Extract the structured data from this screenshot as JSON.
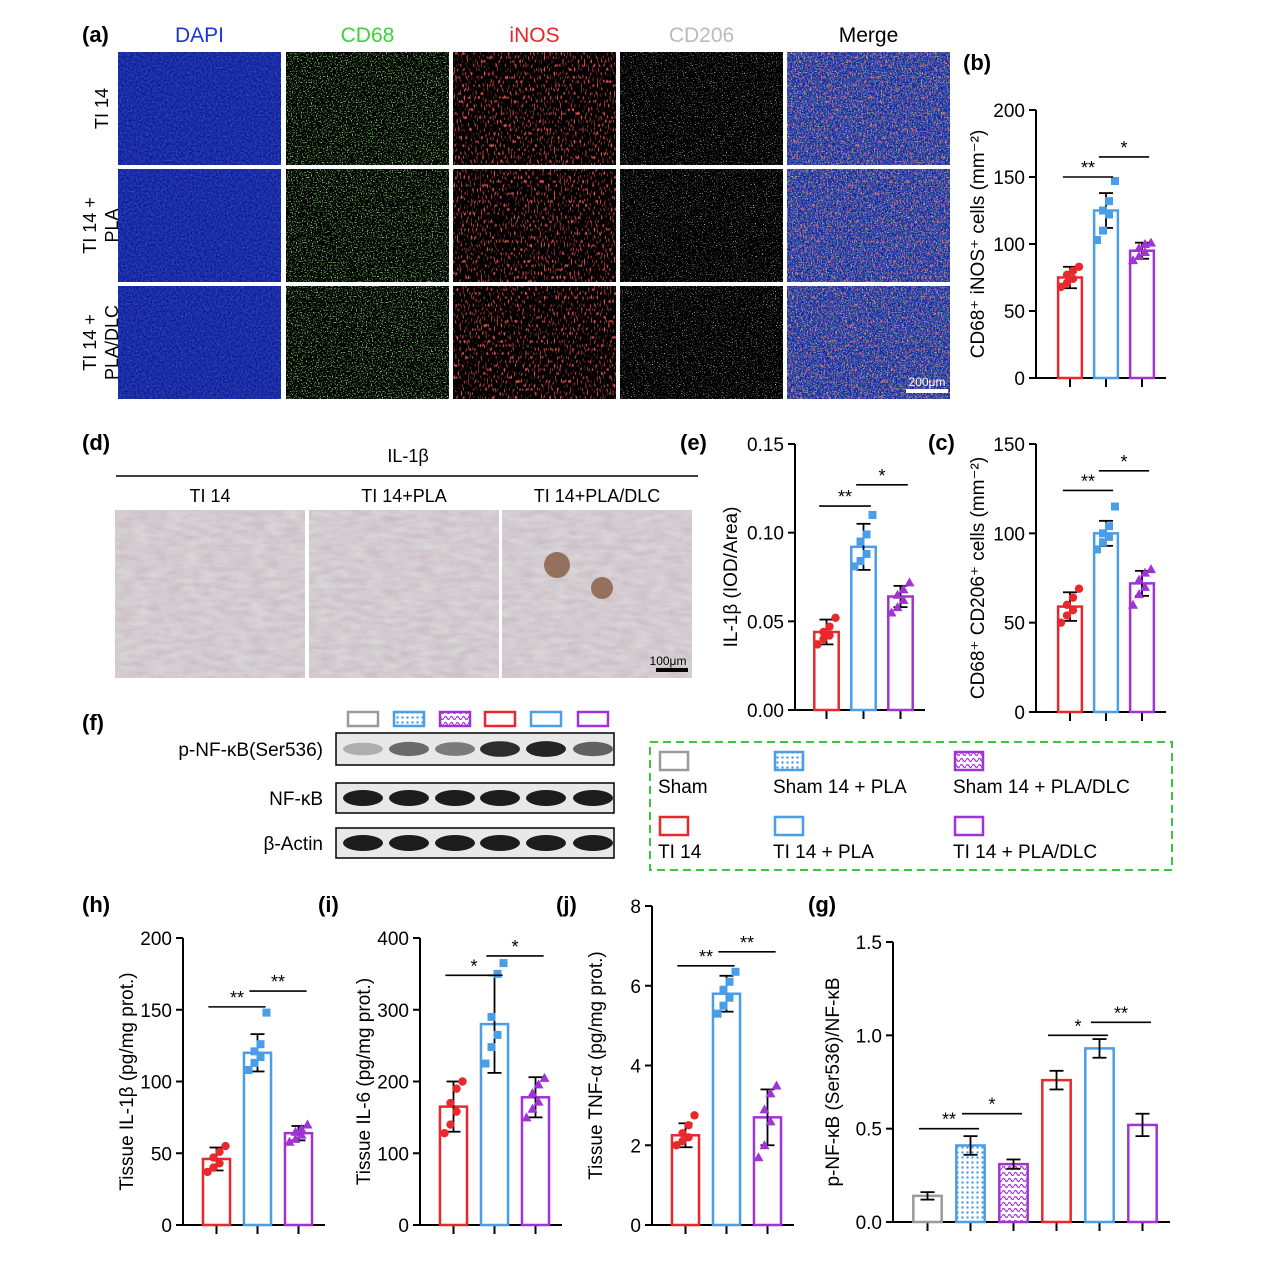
{
  "colors": {
    "red": "#e8282c",
    "blue": "#4a9ee8",
    "purple": "#a033d6",
    "gray": "#9a9a9a",
    "dapi": "#1c35d8",
    "cd68": "#3ad23a",
    "inos": "#e82525",
    "cd206": "#bbbbbb"
  },
  "panels": {
    "a": "(a)",
    "b": "(b)",
    "c": "(c)",
    "d": "(d)",
    "e": "(e)",
    "f": "(f)",
    "g": "(g)",
    "h": "(h)",
    "i": "(i)",
    "j": "(j)"
  },
  "if_panel": {
    "columns": [
      "DAPI",
      "CD68",
      "iNOS",
      "CD206",
      "Merge"
    ],
    "rows": [
      [
        "TI 14"
      ],
      [
        "TI 14 +",
        "PLA"
      ],
      [
        "TI 14 +",
        "PLA/DLC"
      ]
    ],
    "scale_bar": "200μm"
  },
  "ihc_panel": {
    "title": "IL-1β",
    "columns": [
      "TI 14",
      "TI 14+PLA",
      "TI 14+PLA/DLC"
    ],
    "scale_bar": "100μm"
  },
  "western": {
    "bands": [
      "p-NF-κB(Ser536)",
      "NF-κB",
      "β-Actin"
    ]
  },
  "legend": {
    "items": [
      {
        "label": "Sham",
        "color": "#9a9a9a",
        "pattern": "none"
      },
      {
        "label": "Sham 14 + PLA",
        "color": "#4a9ee8",
        "pattern": "dots"
      },
      {
        "label": "Sham 14 + PLA/DLC",
        "color": "#a033d6",
        "pattern": "waves"
      },
      {
        "label": "TI 14",
        "color": "#e8282c",
        "pattern": "none"
      },
      {
        "label": "TI 14 + PLA",
        "color": "#4a9ee8",
        "pattern": "none"
      },
      {
        "label": "TI 14 + PLA/DLC",
        "color": "#a033d6",
        "pattern": "none"
      }
    ]
  },
  "chart_data": [
    {
      "id": "b",
      "type": "bar",
      "ylabel": "CD68⁺ iNOS⁺ cells (mm⁻²)",
      "ylim": [
        0,
        200
      ],
      "yticks": [
        0,
        50,
        100,
        150,
        200
      ],
      "tick_labels": [
        "0",
        "50",
        "100",
        "150",
        "200"
      ],
      "values": [
        75,
        125,
        95
      ],
      "errors": [
        8,
        13,
        6
      ],
      "points": [
        [
          68,
          71,
          74,
          77,
          80,
          83
        ],
        [
          103,
          110,
          122,
          125,
          132,
          147
        ],
        [
          88,
          91,
          94,
          97,
          100,
          101
        ]
      ],
      "colors": [
        "#e8282c",
        "#4a9ee8",
        "#a033d6"
      ],
      "sig": [
        {
          "from": 0,
          "to": 1,
          "y": 150,
          "label": "**"
        },
        {
          "from": 1,
          "to": 2,
          "y": 165,
          "label": "*"
        }
      ]
    },
    {
      "id": "c",
      "type": "bar",
      "ylabel": "CD68⁺ CD206⁺ cells (mm⁻²)",
      "ylim": [
        0,
        150
      ],
      "yticks": [
        0,
        50,
        100,
        150
      ],
      "tick_labels": [
        "0",
        "50",
        "100",
        "150"
      ],
      "values": [
        59,
        100,
        72
      ],
      "errors": [
        8,
        7,
        7
      ],
      "points": [
        [
          50,
          54,
          57,
          60,
          64,
          69
        ],
        [
          91,
          95,
          98,
          100,
          104,
          115
        ],
        [
          60,
          66,
          70,
          74,
          78,
          80
        ]
      ],
      "colors": [
        "#e8282c",
        "#4a9ee8",
        "#a033d6"
      ],
      "sig": [
        {
          "from": 0,
          "to": 1,
          "y": 124,
          "label": "**"
        },
        {
          "from": 1,
          "to": 2,
          "y": 135,
          "label": "*"
        }
      ]
    },
    {
      "id": "e",
      "type": "bar",
      "ylabel": "IL-1β (IOD/Area)",
      "ylim": [
        0,
        0.15
      ],
      "yticks": [
        0,
        0.05,
        0.1,
        0.15
      ],
      "tick_labels": [
        "0.00",
        "0.05",
        "0.10",
        "0.15"
      ],
      "values": [
        0.044,
        0.092,
        0.064
      ],
      "errors": [
        0.007,
        0.013,
        0.006
      ],
      "points": [
        [
          0.037,
          0.04,
          0.042,
          0.044,
          0.047,
          0.052
        ],
        [
          0.081,
          0.084,
          0.088,
          0.095,
          0.099,
          0.11
        ],
        [
          0.055,
          0.058,
          0.062,
          0.065,
          0.068,
          0.072
        ]
      ],
      "colors": [
        "#e8282c",
        "#4a9ee8",
        "#a033d6"
      ],
      "sig": [
        {
          "from": 0,
          "to": 1,
          "y": 0.115,
          "label": "**"
        },
        {
          "from": 1,
          "to": 2,
          "y": 0.127,
          "label": "*"
        }
      ]
    },
    {
      "id": "h",
      "type": "bar",
      "ylabel": "Tissue IL-1β (pg/mg prot.)",
      "ylim": [
        0,
        200
      ],
      "yticks": [
        0,
        50,
        100,
        150,
        200
      ],
      "tick_labels": [
        "0",
        "50",
        "100",
        "150",
        "200"
      ],
      "values": [
        46,
        120,
        64
      ],
      "errors": [
        8,
        13,
        5
      ],
      "points": [
        [
          37,
          40,
          43,
          47,
          51,
          55
        ],
        [
          108,
          113,
          117,
          121,
          126,
          148
        ],
        [
          58,
          60,
          63,
          65,
          67,
          70
        ]
      ],
      "colors": [
        "#e8282c",
        "#4a9ee8",
        "#a033d6"
      ],
      "sig": [
        {
          "from": 0,
          "to": 1,
          "y": 152,
          "label": "**"
        },
        {
          "from": 1,
          "to": 2,
          "y": 163,
          "label": "**"
        }
      ]
    },
    {
      "id": "i",
      "type": "bar",
      "ylabel": "Tissue IL-6 (pg/mg prot.)",
      "ylim": [
        0,
        400
      ],
      "yticks": [
        0,
        100,
        200,
        300,
        400
      ],
      "tick_labels": [
        "0",
        "100",
        "200",
        "300",
        "400"
      ],
      "values": [
        165,
        280,
        178
      ],
      "errors": [
        35,
        68,
        28
      ],
      "points": [
        [
          128,
          140,
          158,
          170,
          190,
          200
        ],
        [
          225,
          248,
          265,
          290,
          350,
          365
        ],
        [
          150,
          162,
          172,
          184,
          196,
          205
        ]
      ],
      "colors": [
        "#e8282c",
        "#4a9ee8",
        "#a033d6"
      ],
      "sig": [
        {
          "from": 0,
          "to": 1,
          "y": 348,
          "label": "*"
        },
        {
          "from": 1,
          "to": 2,
          "y": 375,
          "label": "*"
        }
      ]
    },
    {
      "id": "j",
      "type": "bar",
      "ylabel": "Tissue TNF-α (pg/mg prot.)",
      "ylim": [
        0,
        8
      ],
      "yticks": [
        0,
        2,
        4,
        6,
        8
      ],
      "tick_labels": [
        "0",
        "2",
        "4",
        "6",
        "8"
      ],
      "values": [
        2.25,
        5.8,
        2.7
      ],
      "errors": [
        0.3,
        0.45,
        0.7
      ],
      "points": [
        [
          2.0,
          2.1,
          2.2,
          2.3,
          2.5,
          2.75
        ],
        [
          5.3,
          5.5,
          5.7,
          5.9,
          6.1,
          6.35
        ],
        [
          1.7,
          2.0,
          2.6,
          2.9,
          3.3,
          3.5
        ]
      ],
      "colors": [
        "#e8282c",
        "#4a9ee8",
        "#a033d6"
      ],
      "sig": [
        {
          "from": 0,
          "to": 1,
          "y": 6.5,
          "label": "**"
        },
        {
          "from": 1,
          "to": 2,
          "y": 6.85,
          "label": "**"
        }
      ]
    },
    {
      "id": "g",
      "type": "bar",
      "ylabel": "p-NF-κB (Ser536)/NF-κB",
      "ylim": [
        0,
        1.5
      ],
      "yticks": [
        0,
        0.5,
        1.0,
        1.5
      ],
      "tick_labels": [
        "0.0",
        "0.5",
        "1.0",
        "1.5"
      ],
      "values": [
        0.14,
        0.41,
        0.31,
        0.76,
        0.93,
        0.52
      ],
      "errors": [
        0.02,
        0.05,
        0.025,
        0.05,
        0.05,
        0.06
      ],
      "colors": [
        "#9a9a9a",
        "#4a9ee8",
        "#a033d6",
        "#e8282c",
        "#4a9ee8",
        "#a033d6"
      ],
      "patterns": [
        "none",
        "dots",
        "waves",
        "none",
        "none",
        "none"
      ],
      "sig": [
        {
          "from": 0,
          "to": 1,
          "y": 0.5,
          "label": "**"
        },
        {
          "from": 1,
          "to": 2,
          "y": 0.58,
          "label": "*"
        },
        {
          "from": 3,
          "to": 4,
          "y": 1.0,
          "label": "*"
        },
        {
          "from": 4,
          "to": 5,
          "y": 1.07,
          "label": "**"
        }
      ]
    }
  ]
}
